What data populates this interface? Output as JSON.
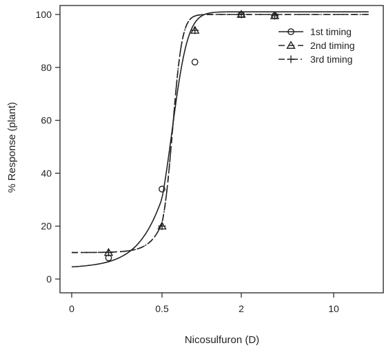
{
  "chart_data": {
    "type": "line",
    "xlabel": "Nicosulfuron (D)",
    "ylabel": "% Response (plant)",
    "x_scale": "log1p",
    "x_ticks": [
      0,
      0.5,
      2,
      10
    ],
    "x_tick_labels": [
      "0",
      "0.5",
      "2",
      "10"
    ],
    "xlim": [
      0,
      17
    ],
    "ylim": [
      0,
      100
    ],
    "y_ticks": [
      0,
      20,
      40,
      60,
      80,
      100
    ],
    "y_tick_labels": [
      "0",
      "20",
      "40",
      "60",
      "80",
      "100"
    ],
    "grid": false,
    "legend_position": "top-right",
    "series": [
      {
        "name": "1st timing",
        "marker": "circle",
        "line_style": "solid",
        "color": "#222222",
        "curve": {
          "lower": 4,
          "upper": 101,
          "x50": 0.62,
          "steepness": 8.2
        },
        "points": [
          {
            "x": 0.18,
            "y": 8
          },
          {
            "x": 0.5,
            "y": 34
          },
          {
            "x": 1.0,
            "y": 82
          },
          {
            "x": 2.0,
            "y": 100
          },
          {
            "x": 3.8,
            "y": 99.5
          }
        ]
      },
      {
        "name": "2nd timing",
        "marker": "triangle",
        "line_style": "dashed",
        "color": "#222222",
        "curve": {
          "lower": 10,
          "upper": 100,
          "x50": 0.64,
          "steepness": 14
        },
        "points": [
          {
            "x": 0.18,
            "y": 10
          },
          {
            "x": 0.5,
            "y": 20
          },
          {
            "x": 1.0,
            "y": 94
          },
          {
            "x": 2.0,
            "y": 100
          },
          {
            "x": 3.8,
            "y": 99.5
          }
        ]
      },
      {
        "name": "3rd timing",
        "marker": "plus",
        "line_style": "dash-dot",
        "color": "#222222",
        "curve": {
          "lower": 10,
          "upper": 100,
          "x50": 0.64,
          "steepness": 14
        },
        "points": [
          {
            "x": 0.18,
            "y": 10
          },
          {
            "x": 0.5,
            "y": 20
          },
          {
            "x": 1.0,
            "y": 94
          },
          {
            "x": 2.0,
            "y": 100
          },
          {
            "x": 3.8,
            "y": 99.5
          }
        ]
      }
    ]
  }
}
